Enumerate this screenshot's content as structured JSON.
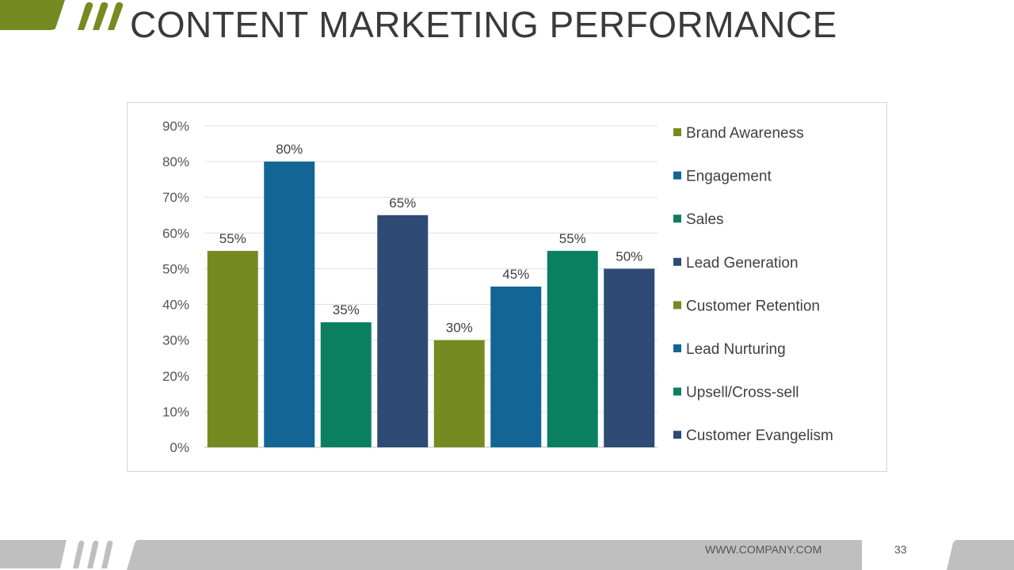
{
  "title": "CONTENT MARKETING PERFORMANCE",
  "footer": {
    "url": "WWW.COMPANY.COM",
    "page_number": "33"
  },
  "colors": {
    "accent_green": "#758b22",
    "footer_gray": "#bfbfbf"
  },
  "chart_data": {
    "type": "bar",
    "title": "",
    "xlabel": "",
    "ylabel": "",
    "ylim": [
      0,
      90
    ],
    "yticks": [
      "0%",
      "10%",
      "20%",
      "30%",
      "40%",
      "50%",
      "60%",
      "70%",
      "80%",
      "90%"
    ],
    "grid": true,
    "legend_placement": "right",
    "categories": [
      "Brand Awareness",
      "Engagement",
      "Sales",
      "Lead Generation",
      "Customer Retention",
      "Lead Nurturing",
      "Upsell/Cross-sell",
      "Customer Evangelism"
    ],
    "values": [
      55,
      80,
      35,
      65,
      30,
      45,
      55,
      50
    ],
    "data_labels": [
      "55%",
      "80%",
      "35%",
      "65%",
      "30%",
      "45%",
      "55%",
      "50%"
    ],
    "colors": [
      "#758b22",
      "#136595",
      "#0a8060",
      "#2e4a75",
      "#758b22",
      "#136595",
      "#0a8060",
      "#2e4a75"
    ]
  }
}
